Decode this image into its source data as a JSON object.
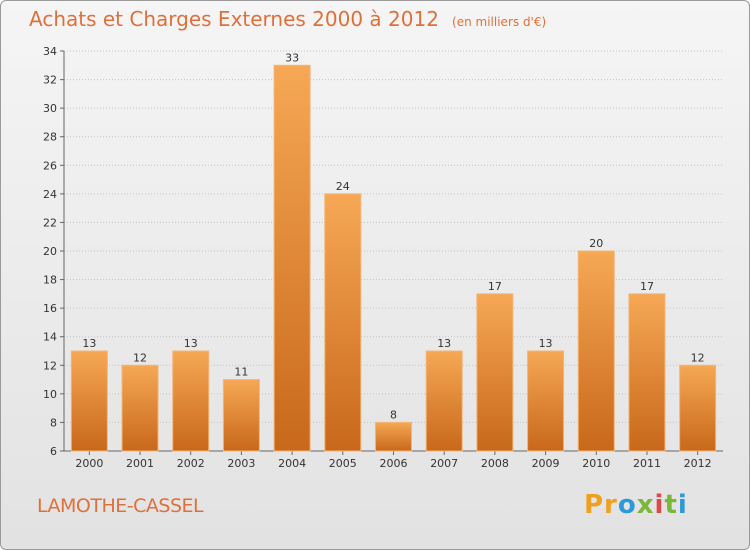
{
  "header": {
    "title": "Achats et Charges Externes 2000 à 2012",
    "subtitle": "(en milliers d'€)"
  },
  "footer": {
    "town": "LAMOTHE-CASSEL",
    "logo": "Proxiti"
  },
  "colors": {
    "bar_light": "#f6a855",
    "bar_dark": "#c8681a",
    "accent_text": "#e0703a"
  },
  "chart_data": {
    "type": "bar",
    "categories": [
      "2000",
      "2001",
      "2002",
      "2003",
      "2004",
      "2005",
      "2006",
      "2007",
      "2008",
      "2009",
      "2010",
      "2011",
      "2012"
    ],
    "values": [
      13,
      12,
      13,
      11,
      33,
      24,
      8,
      13,
      17,
      13,
      20,
      17,
      12
    ],
    "ylim": [
      6,
      34
    ],
    "yticks": [
      6,
      8,
      10,
      12,
      14,
      16,
      18,
      20,
      22,
      24,
      26,
      28,
      30,
      32,
      34
    ],
    "grid": true
  }
}
